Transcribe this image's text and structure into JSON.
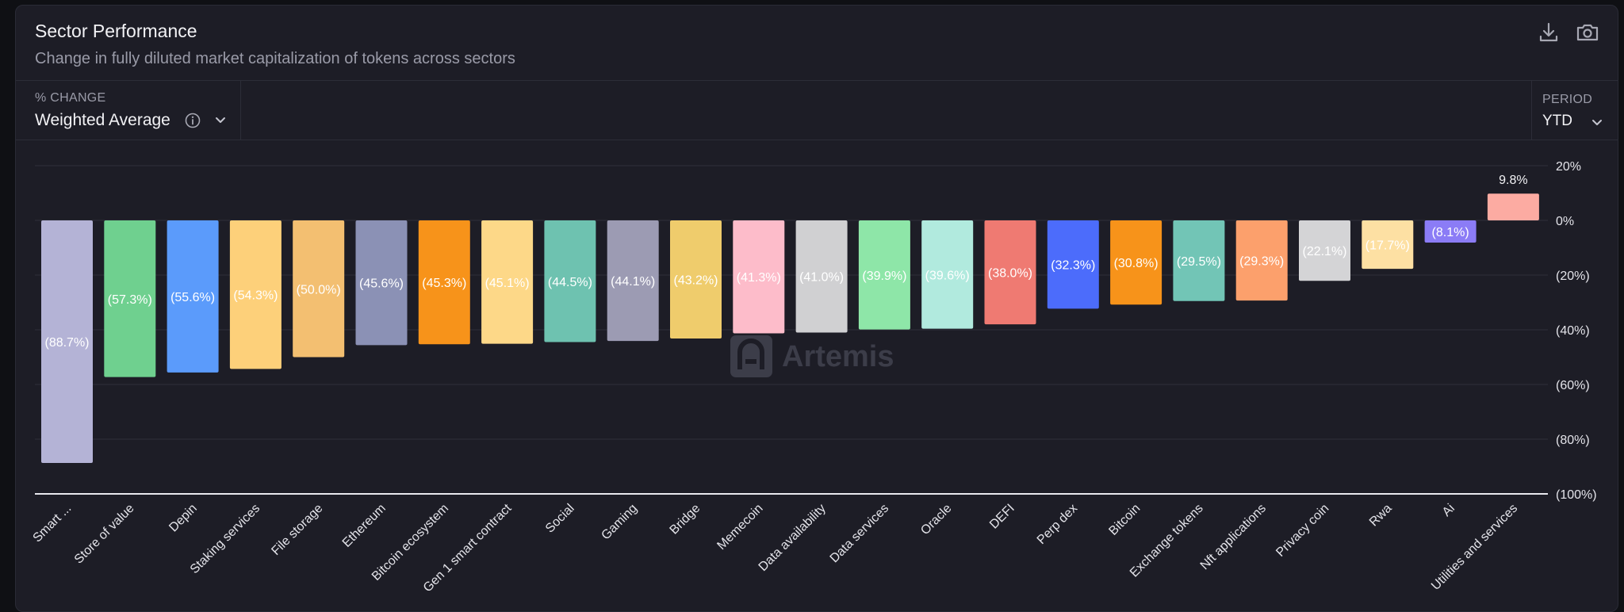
{
  "header": {
    "title": "Sector Performance",
    "subtitle": "Change in fully diluted market capitalization of tokens across sectors",
    "icons": [
      "download-icon",
      "camera-icon"
    ]
  },
  "controls": {
    "metric_label": "% CHANGE",
    "metric_value": "Weighted Average",
    "period_label": "PERIOD",
    "period_value": "YTD"
  },
  "watermark": "Artemis",
  "chart_data": {
    "type": "bar",
    "title": "Sector Performance",
    "xlabel": "",
    "ylabel": "",
    "ylim": [
      -100,
      20
    ],
    "y_ticks": [
      20,
      0,
      -20,
      -40,
      -60,
      -80,
      -100
    ],
    "y_tick_labels": [
      "20%",
      "0%",
      "(20%)",
      "(40%)",
      "(60%)",
      "(80%)",
      "(100%)"
    ],
    "grid": true,
    "categories": [
      "Smart ...",
      "Store of value",
      "Depin",
      "Staking services",
      "File storage",
      "Ethereum",
      "Bitcoin ecosystem",
      "Gen 1 smart contract",
      "Social",
      "Gaming",
      "Bridge",
      "Memecoin",
      "Data availability",
      "Data services",
      "Oracle",
      "DEFI",
      "Perp dex",
      "Bitcoin",
      "Exchange tokens",
      "Nft applications",
      "Privacy coin",
      "Rwa",
      "Ai",
      "Utilities and services"
    ],
    "values": [
      -88.7,
      -57.3,
      -55.6,
      -54.3,
      -50.0,
      -45.6,
      -45.3,
      -45.1,
      -44.5,
      -44.1,
      -43.2,
      -41.3,
      -41.0,
      -39.9,
      -39.6,
      -38.0,
      -32.3,
      -30.8,
      -29.5,
      -29.3,
      -22.1,
      -17.7,
      -8.1,
      9.8
    ],
    "labels": [
      "(88.7%)",
      "(57.3%)",
      "(55.6%)",
      "(54.3%)",
      "(50.0%)",
      "(45.6%)",
      "(45.3%)",
      "(45.1%)",
      "(44.5%)",
      "(44.1%)",
      "(43.2%)",
      "(41.3%)",
      "(41.0%)",
      "(39.9%)",
      "(39.6%)",
      "(38.0%)",
      "(32.3%)",
      "(30.8%)",
      "(29.5%)",
      "(29.3%)",
      "(22.1%)",
      "(17.7%)",
      "(8.1%)",
      "9.8%"
    ],
    "colors": [
      "#b4b3d6",
      "#6fd08f",
      "#5b9bfb",
      "#fdd07a",
      "#f3bf71",
      "#8b91b5",
      "#f7931a",
      "#fdd888",
      "#6ec2b0",
      "#9c9bb3",
      "#efcc6c",
      "#fdbcca",
      "#d0d0d2",
      "#8ee6a8",
      "#b1eade",
      "#ef7a72",
      "#4c6cfb",
      "#f7931a",
      "#72c5b6",
      "#fca06c",
      "#d4d4d6",
      "#fde0a3",
      "#8b7cf6",
      "#fcaba2"
    ]
  }
}
